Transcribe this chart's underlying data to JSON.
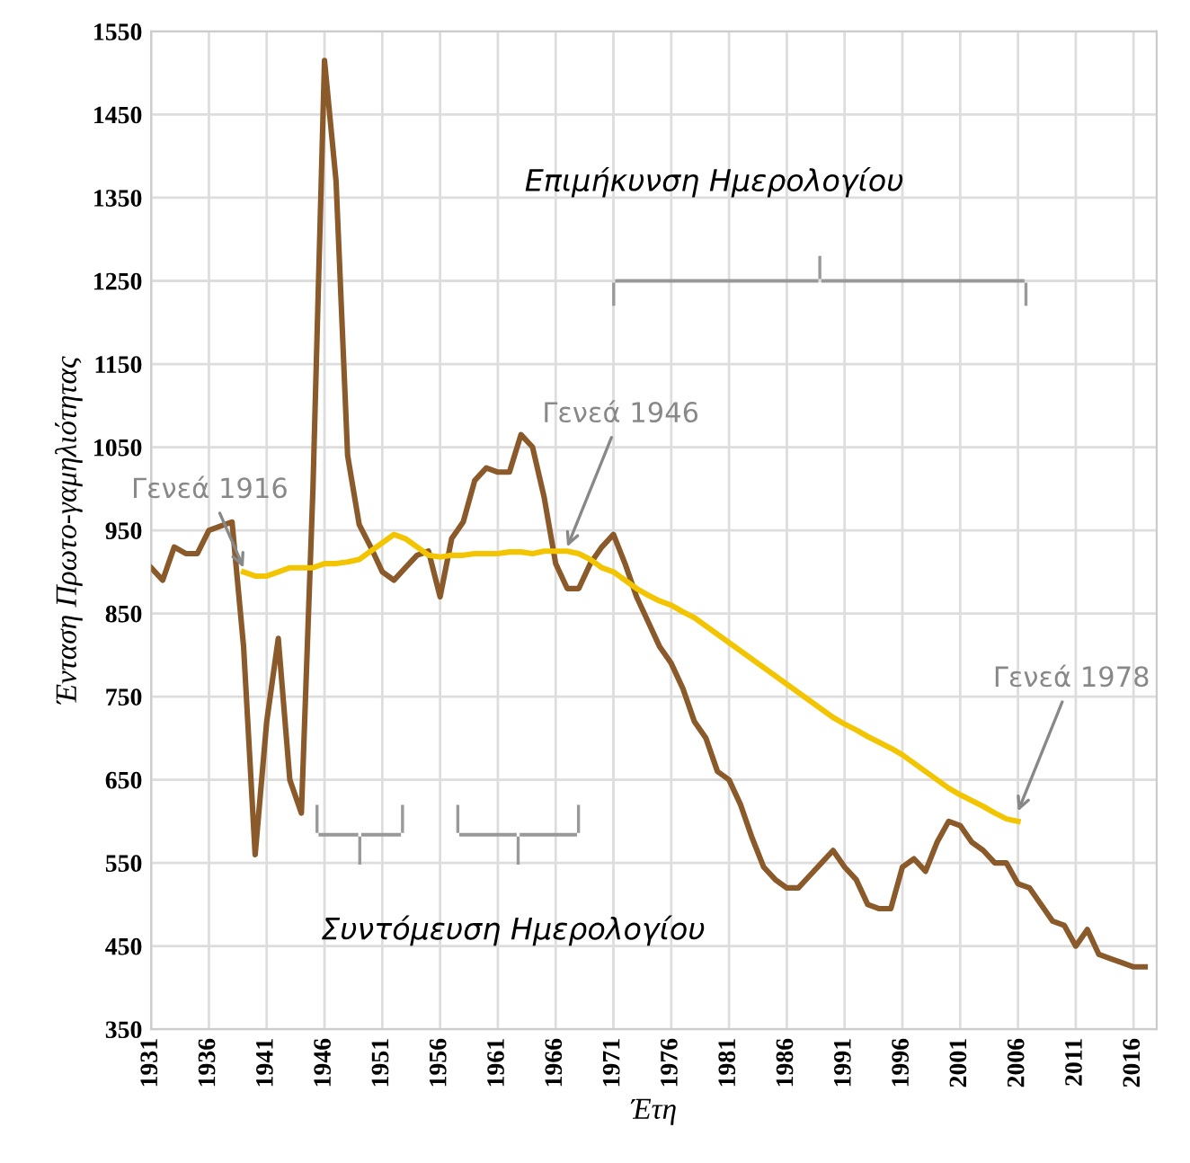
{
  "chart_data": {
    "type": "line",
    "xlabel": "Έτη",
    "ylabel": "Ένταση Πρωτο-γαμηλιότητας",
    "xlim": [
      1931,
      2018
    ],
    "ylim": [
      350,
      1550
    ],
    "xticks": [
      1931,
      1936,
      1941,
      1946,
      1951,
      1956,
      1961,
      1966,
      1971,
      1976,
      1981,
      1986,
      1991,
      1996,
      2001,
      2006,
      2011,
      2016
    ],
    "yticks": [
      350,
      450,
      550,
      650,
      750,
      850,
      950,
      1050,
      1150,
      1250,
      1350,
      1450,
      1550
    ],
    "grid": true,
    "legend": false,
    "marker": "none",
    "line_style": "solid",
    "series": [
      {
        "color": "#8b5a2b",
        "x": [
          1931,
          1932,
          1933,
          1934,
          1935,
          1936,
          1937,
          1938,
          1939,
          1940,
          1941,
          1942,
          1943,
          1944,
          1945,
          1946,
          1947,
          1948,
          1949,
          1950,
          1951,
          1952,
          1953,
          1954,
          1955,
          1956,
          1957,
          1958,
          1959,
          1960,
          1961,
          1962,
          1963,
          1964,
          1965,
          1966,
          1967,
          1968,
          1969,
          1970,
          1971,
          1972,
          1973,
          1974,
          1975,
          1976,
          1977,
          1978,
          1979,
          1980,
          1981,
          1982,
          1983,
          1984,
          1985,
          1986,
          1987,
          1988,
          1989,
          1990,
          1991,
          1992,
          1993,
          1994,
          1995,
          1996,
          1997,
          1998,
          1999,
          2000,
          2001,
          2002,
          2003,
          2004,
          2005,
          2006,
          2007,
          2008,
          2009,
          2010,
          2011,
          2012,
          2013,
          2014,
          2015,
          2016,
          2017
        ],
        "values": [
          905,
          890,
          930,
          922,
          922,
          950,
          955,
          960,
          810,
          560,
          720,
          820,
          650,
          610,
          1000,
          1515,
          1370,
          1040,
          957,
          930,
          900,
          890,
          905,
          920,
          925,
          870,
          940,
          960,
          1010,
          1025,
          1020,
          1020,
          1065,
          1050,
          990,
          910,
          880,
          880,
          910,
          930,
          945,
          910,
          870,
          840,
          810,
          790,
          760,
          720,
          700,
          660,
          650,
          620,
          580,
          545,
          530,
          520,
          520,
          535,
          550,
          565,
          545,
          530,
          500,
          495,
          495,
          545,
          555,
          540,
          575,
          600,
          595,
          575,
          565,
          550,
          550,
          525,
          520,
          500,
          480,
          475,
          450,
          470,
          440,
          435,
          430,
          425,
          425
        ]
      },
      {
        "color": "#f2c500",
        "x": [
          1939,
          1940,
          1941,
          1942,
          1943,
          1944,
          1945,
          1946,
          1947,
          1948,
          1949,
          1950,
          1951,
          1952,
          1953,
          1954,
          1955,
          1956,
          1957,
          1958,
          1959,
          1960,
          1961,
          1962,
          1963,
          1964,
          1965,
          1966,
          1967,
          1968,
          1969,
          1970,
          1971,
          1972,
          1973,
          1974,
          1975,
          1976,
          1977,
          1978,
          1979,
          1980,
          1981,
          1982,
          1983,
          1984,
          1985,
          1986,
          1987,
          1988,
          1989,
          1990,
          1991,
          1992,
          1993,
          1994,
          1995,
          1996,
          1997,
          1998,
          1999,
          2000,
          2001,
          2002,
          2003,
          2004,
          2005,
          2006
        ],
        "values": [
          900,
          895,
          895,
          900,
          905,
          905,
          905,
          910,
          910,
          912,
          915,
          925,
          935,
          945,
          940,
          930,
          920,
          918,
          920,
          920,
          922,
          922,
          922,
          924,
          924,
          922,
          925,
          925,
          925,
          922,
          915,
          905,
          900,
          890,
          880,
          872,
          865,
          860,
          852,
          845,
          835,
          825,
          815,
          805,
          795,
          785,
          775,
          765,
          755,
          745,
          735,
          725,
          717,
          710,
          702,
          695,
          688,
          680,
          670,
          660,
          650,
          640,
          632,
          625,
          618,
          610,
          603,
          600
        ]
      }
    ],
    "annotations": [
      {
        "text": "Γενεά 1916",
        "x": 1939,
        "y": 905
      },
      {
        "text": "Γενεά 1946",
        "x": 1967,
        "y": 930
      },
      {
        "text": "Γενεά 1978",
        "x": 2006,
        "y": 612
      },
      "Επιμήκυνση Ημερολογίου",
      "Συντόμευση Ημερολογίου"
    ]
  }
}
